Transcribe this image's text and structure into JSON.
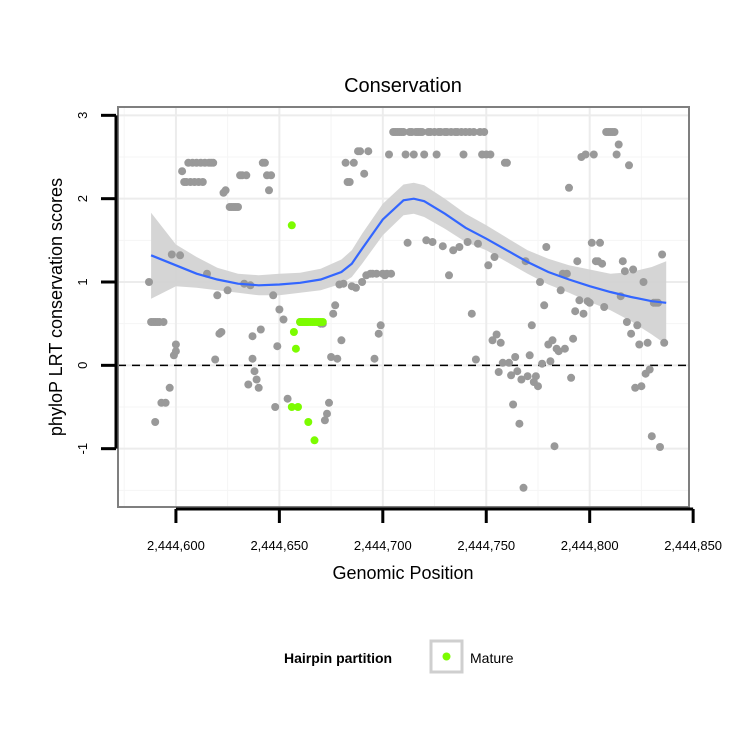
{
  "chart_data": {
    "type": "scatter",
    "title": "Conservation",
    "xlabel": "Genomic Position",
    "ylabel": "phyloP LRT conservation scores",
    "xlim": [
      2444572,
      2444848
    ],
    "ylim": [
      -1.7,
      3.1
    ],
    "x_ticks": [
      2444600,
      2444650,
      2444700,
      2444750,
      2444800,
      2444850
    ],
    "x_tick_labels": [
      "2,444,600",
      "2,444,650",
      "2,444,700",
      "2,444,750",
      "2,444,800",
      "2,444,850"
    ],
    "y_ticks": [
      -1,
      0,
      1,
      2,
      3
    ],
    "y_tick_labels": [
      "-1",
      "0",
      "1",
      "2",
      "3"
    ],
    "reference_line": {
      "y": 0,
      "style": "dashed"
    },
    "grid": true,
    "colors": {
      "points": "#999999",
      "mature": "#7cfc00",
      "smooth_line": "#3366ff",
      "confidence_band": "#d3d3d3",
      "panel_border": "#7f7f7f"
    },
    "legend": {
      "title": "Hairpin partition",
      "placement": "bottom",
      "entries": [
        {
          "label": "Mature",
          "color": "#7cfc00"
        }
      ]
    },
    "series": [
      {
        "name": "",
        "points": [
          [
            2444587,
            1.0
          ],
          [
            2444588,
            0.52
          ],
          [
            2444589,
            0.52
          ],
          [
            2444590,
            0.52
          ],
          [
            2444590,
            -0.68
          ],
          [
            2444591,
            0.52
          ],
          [
            2444592,
            0.52
          ],
          [
            2444593,
            -0.45
          ],
          [
            2444594,
            0.52
          ],
          [
            2444595,
            -0.45
          ],
          [
            2444597,
            -0.27
          ],
          [
            2444598,
            1.33
          ],
          [
            2444599,
            0.12
          ],
          [
            2444600,
            0.17
          ],
          [
            2444600,
            0.25
          ],
          [
            2444602,
            1.32
          ],
          [
            2444603,
            2.33
          ],
          [
            2444604,
            2.2
          ],
          [
            2444605,
            2.2
          ],
          [
            2444606,
            2.43
          ],
          [
            2444607,
            2.2
          ],
          [
            2444608,
            2.43
          ],
          [
            2444609,
            2.2
          ],
          [
            2444610,
            2.43
          ],
          [
            2444611,
            2.2
          ],
          [
            2444612,
            2.43
          ],
          [
            2444613,
            2.2
          ],
          [
            2444614,
            2.43
          ],
          [
            2444615,
            1.1
          ],
          [
            2444616,
            2.43
          ],
          [
            2444617,
            2.43
          ],
          [
            2444618,
            2.43
          ],
          [
            2444619,
            0.07
          ],
          [
            2444620,
            0.84
          ],
          [
            2444621,
            0.38
          ],
          [
            2444622,
            0.4
          ],
          [
            2444623,
            2.07
          ],
          [
            2444624,
            2.1
          ],
          [
            2444625,
            0.9
          ],
          [
            2444626,
            1.9
          ],
          [
            2444627,
            1.9
          ],
          [
            2444628,
            1.9
          ],
          [
            2444629,
            1.9
          ],
          [
            2444630,
            1.9
          ],
          [
            2444631,
            2.28
          ],
          [
            2444632,
            2.28
          ],
          [
            2444633,
            0.98
          ],
          [
            2444634,
            2.28
          ],
          [
            2444635,
            -0.23
          ],
          [
            2444636,
            0.96
          ],
          [
            2444637,
            0.35
          ],
          [
            2444637,
            0.08
          ],
          [
            2444638,
            -0.07
          ],
          [
            2444639,
            -0.17
          ],
          [
            2444640,
            -0.27
          ],
          [
            2444641,
            0.43
          ],
          [
            2444642,
            2.43
          ],
          [
            2444643,
            2.43
          ],
          [
            2444644,
            2.28
          ],
          [
            2444645,
            2.1
          ],
          [
            2444646,
            2.28
          ],
          [
            2444647,
            0.84
          ],
          [
            2444648,
            -0.5
          ],
          [
            2444649,
            0.23
          ],
          [
            2444650,
            0.67
          ],
          [
            2444652,
            0.55
          ],
          [
            2444654,
            -0.4
          ],
          [
            2444660,
            0.52
          ],
          [
            2444661,
            0.52
          ],
          [
            2444662,
            0.52
          ],
          [
            2444663,
            0.52
          ],
          [
            2444670,
            0.5
          ],
          [
            2444671,
            0.5
          ],
          [
            2444672,
            -0.66
          ],
          [
            2444673,
            -0.58
          ],
          [
            2444674,
            -0.45
          ],
          [
            2444675,
            0.1
          ],
          [
            2444676,
            0.62
          ],
          [
            2444677,
            0.72
          ],
          [
            2444678,
            0.08
          ],
          [
            2444679,
            0.97
          ],
          [
            2444680,
            0.3
          ],
          [
            2444681,
            0.98
          ],
          [
            2444682,
            2.43
          ],
          [
            2444683,
            2.2
          ],
          [
            2444684,
            2.2
          ],
          [
            2444685,
            0.95
          ],
          [
            2444686,
            2.43
          ],
          [
            2444687,
            0.93
          ],
          [
            2444688,
            2.57
          ],
          [
            2444689,
            2.57
          ],
          [
            2444690,
            1.0
          ],
          [
            2444691,
            2.3
          ],
          [
            2444692,
            1.08
          ],
          [
            2444693,
            2.57
          ],
          [
            2444694,
            1.1
          ],
          [
            2444695,
            1.1
          ],
          [
            2444696,
            0.08
          ],
          [
            2444697,
            1.1
          ],
          [
            2444698,
            0.38
          ],
          [
            2444699,
            0.48
          ],
          [
            2444700,
            1.1
          ],
          [
            2444701,
            1.08
          ],
          [
            2444702,
            1.1
          ],
          [
            2444703,
            2.53
          ],
          [
            2444704,
            1.1
          ],
          [
            2444705,
            2.8
          ],
          [
            2444706,
            2.8
          ],
          [
            2444707,
            2.8
          ],
          [
            2444708,
            2.8
          ],
          [
            2444709,
            2.8
          ],
          [
            2444710,
            2.8
          ],
          [
            2444711,
            2.53
          ],
          [
            2444712,
            1.47
          ],
          [
            2444713,
            2.8
          ],
          [
            2444714,
            2.8
          ],
          [
            2444715,
            2.53
          ],
          [
            2444716,
            2.8
          ],
          [
            2444717,
            2.8
          ],
          [
            2444718,
            2.8
          ],
          [
            2444719,
            2.8
          ],
          [
            2444720,
            2.53
          ],
          [
            2444721,
            1.5
          ],
          [
            2444722,
            2.8
          ],
          [
            2444723,
            2.8
          ],
          [
            2444724,
            1.48
          ],
          [
            2444725,
            2.8
          ],
          [
            2444726,
            2.53
          ],
          [
            2444727,
            2.8
          ],
          [
            2444728,
            2.8
          ],
          [
            2444729,
            1.43
          ],
          [
            2444730,
            2.8
          ],
          [
            2444731,
            2.8
          ],
          [
            2444732,
            1.08
          ],
          [
            2444733,
            2.8
          ],
          [
            2444734,
            1.38
          ],
          [
            2444735,
            2.8
          ],
          [
            2444736,
            2.8
          ],
          [
            2444737,
            1.42
          ],
          [
            2444738,
            2.8
          ],
          [
            2444739,
            2.53
          ],
          [
            2444740,
            2.8
          ],
          [
            2444741,
            1.48
          ],
          [
            2444742,
            2.8
          ],
          [
            2444743,
            0.62
          ],
          [
            2444744,
            2.8
          ],
          [
            2444745,
            0.07
          ],
          [
            2444746,
            1.46
          ],
          [
            2444747,
            2.8
          ],
          [
            2444748,
            2.53
          ],
          [
            2444749,
            2.8
          ],
          [
            2444750,
            2.53
          ],
          [
            2444751,
            1.2
          ],
          [
            2444752,
            2.53
          ],
          [
            2444753,
            0.3
          ],
          [
            2444754,
            1.3
          ],
          [
            2444755,
            0.37
          ],
          [
            2444756,
            -0.08
          ],
          [
            2444757,
            0.27
          ],
          [
            2444758,
            0.03
          ],
          [
            2444759,
            2.43
          ],
          [
            2444760,
            2.43
          ],
          [
            2444761,
            0.03
          ],
          [
            2444762,
            -0.12
          ],
          [
            2444763,
            -0.47
          ],
          [
            2444764,
            0.1
          ],
          [
            2444765,
            -0.07
          ],
          [
            2444766,
            -0.7
          ],
          [
            2444767,
            -0.17
          ],
          [
            2444768,
            -1.47
          ],
          [
            2444769,
            1.25
          ],
          [
            2444770,
            -0.13
          ],
          [
            2444771,
            0.12
          ],
          [
            2444772,
            0.48
          ],
          [
            2444773,
            -0.2
          ],
          [
            2444774,
            -0.13
          ],
          [
            2444775,
            -0.25
          ],
          [
            2444776,
            1.0
          ],
          [
            2444777,
            0.02
          ],
          [
            2444778,
            0.72
          ],
          [
            2444779,
            1.42
          ],
          [
            2444780,
            0.25
          ],
          [
            2444781,
            0.05
          ],
          [
            2444782,
            0.3
          ],
          [
            2444783,
            -0.97
          ],
          [
            2444784,
            0.2
          ],
          [
            2444785,
            0.17
          ],
          [
            2444786,
            0.9
          ],
          [
            2444787,
            1.1
          ],
          [
            2444788,
            0.2
          ],
          [
            2444789,
            1.1
          ],
          [
            2444790,
            2.13
          ],
          [
            2444791,
            -0.15
          ],
          [
            2444792,
            0.32
          ],
          [
            2444793,
            0.65
          ],
          [
            2444794,
            1.25
          ],
          [
            2444795,
            0.78
          ],
          [
            2444796,
            2.5
          ],
          [
            2444797,
            0.62
          ],
          [
            2444798,
            2.53
          ],
          [
            2444799,
            0.77
          ],
          [
            2444800,
            0.75
          ],
          [
            2444801,
            1.47
          ],
          [
            2444802,
            2.53
          ],
          [
            2444803,
            1.25
          ],
          [
            2444804,
            1.25
          ],
          [
            2444805,
            1.47
          ],
          [
            2444806,
            1.22
          ],
          [
            2444807,
            0.7
          ],
          [
            2444808,
            2.8
          ],
          [
            2444809,
            2.8
          ],
          [
            2444810,
            2.8
          ],
          [
            2444811,
            2.8
          ],
          [
            2444812,
            2.8
          ],
          [
            2444813,
            2.53
          ],
          [
            2444814,
            2.65
          ],
          [
            2444815,
            0.83
          ],
          [
            2444816,
            1.25
          ],
          [
            2444817,
            1.13
          ],
          [
            2444818,
            0.52
          ],
          [
            2444819,
            2.4
          ],
          [
            2444820,
            0.38
          ],
          [
            2444821,
            1.15
          ],
          [
            2444822,
            -0.27
          ],
          [
            2444823,
            0.48
          ],
          [
            2444824,
            0.25
          ],
          [
            2444825,
            -0.25
          ],
          [
            2444826,
            1.0
          ],
          [
            2444827,
            -0.1
          ],
          [
            2444828,
            0.27
          ],
          [
            2444829,
            -0.05
          ],
          [
            2444830,
            -0.85
          ],
          [
            2444831,
            0.75
          ],
          [
            2444832,
            0.75
          ],
          [
            2444833,
            0.75
          ],
          [
            2444834,
            -0.98
          ],
          [
            2444835,
            1.33
          ],
          [
            2444836,
            0.27
          ]
        ]
      },
      {
        "name": "Mature",
        "points": [
          [
            2444656,
            1.68
          ],
          [
            2444656,
            -0.5
          ],
          [
            2444657,
            0.4
          ],
          [
            2444658,
            0.2
          ],
          [
            2444659,
            -0.5
          ],
          [
            2444660,
            0.52
          ],
          [
            2444661,
            0.52
          ],
          [
            2444662,
            0.52
          ],
          [
            2444663,
            0.52
          ],
          [
            2444664,
            0.52
          ],
          [
            2444664,
            -0.68
          ],
          [
            2444665,
            0.52
          ],
          [
            2444666,
            0.52
          ],
          [
            2444667,
            0.52
          ],
          [
            2444667,
            -0.9
          ],
          [
            2444668,
            0.52
          ],
          [
            2444669,
            0.52
          ],
          [
            2444670,
            0.52
          ],
          [
            2444671,
            0.52
          ]
        ]
      }
    ],
    "smooth_fit": {
      "x": [
        2444588,
        2444600,
        2444610,
        2444620,
        2444630,
        2444640,
        2444650,
        2444660,
        2444670,
        2444680,
        2444685,
        2444690,
        2444700,
        2444710,
        2444715,
        2444720,
        2444730,
        2444740,
        2444750,
        2444760,
        2444770,
        2444780,
        2444790,
        2444800,
        2444810,
        2444820,
        2444830,
        2444837
      ],
      "y": [
        1.32,
        1.2,
        1.1,
        1.03,
        0.98,
        0.96,
        0.97,
        0.99,
        1.03,
        1.12,
        1.22,
        1.4,
        1.75,
        1.98,
        2.0,
        1.97,
        1.82,
        1.65,
        1.52,
        1.38,
        1.24,
        1.12,
        1.03,
        0.95,
        0.88,
        0.82,
        0.77,
        0.75
      ],
      "lower": [
        0.8,
        0.95,
        0.93,
        0.9,
        0.87,
        0.84,
        0.84,
        0.87,
        0.9,
        0.98,
        1.06,
        1.22,
        1.56,
        1.8,
        1.82,
        1.78,
        1.64,
        1.48,
        1.38,
        1.24,
        1.1,
        0.97,
        0.87,
        0.76,
        0.66,
        0.53,
        0.37,
        0.25
      ],
      "upper": [
        1.83,
        1.45,
        1.3,
        1.17,
        1.1,
        1.08,
        1.1,
        1.11,
        1.16,
        1.27,
        1.38,
        1.58,
        1.94,
        2.17,
        2.19,
        2.16,
        2.0,
        1.82,
        1.68,
        1.53,
        1.38,
        1.28,
        1.2,
        1.15,
        1.1,
        1.12,
        1.18,
        1.25
      ]
    }
  }
}
